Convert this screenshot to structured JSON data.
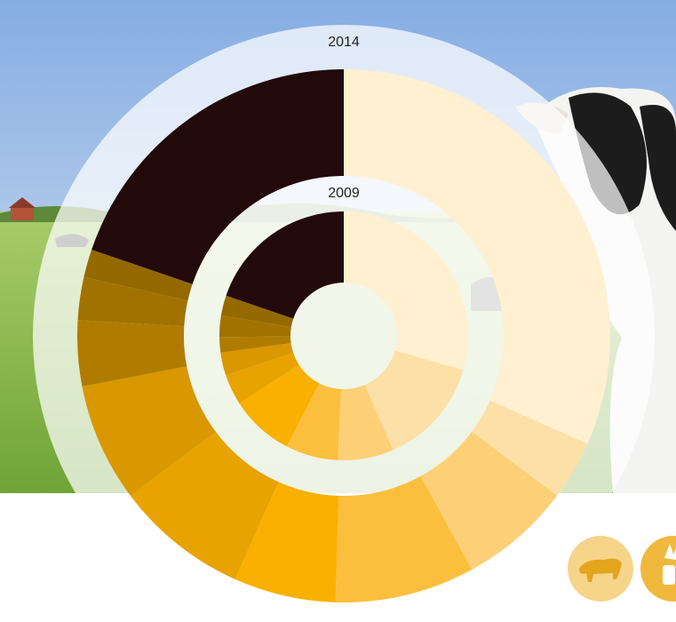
{
  "chart_data": [
    {
      "type": "donut",
      "title": "2014",
      "values": [
        31.7,
        3.6,
        6.8,
        8.5,
        6.2,
        8.1,
        7.2,
        4.0,
        2.6,
        1.7,
        19.8
      ],
      "colors": [
        "#fff0d2",
        "#fde0a8",
        "#fdd078",
        "#fcbf3d",
        "#f9b000",
        "#e8a300",
        "#d99700",
        "#b07c00",
        "#a27200",
        "#946900",
        "#230a0a"
      ]
    },
    {
      "type": "donut",
      "title": "2009",
      "values": [
        29.5,
        14.1,
        7.3,
        6.8,
        8.3,
        4.0,
        3.0,
        2.0,
        2.8,
        2.6,
        19.8
      ],
      "colors": [
        "#fff0d2",
        "#fde0a8",
        "#fdd078",
        "#fcbf3d",
        "#f9b000",
        "#e8a300",
        "#d99700",
        "#b07c00",
        "#a27200",
        "#946900",
        "#230a0a"
      ]
    }
  ]
}
